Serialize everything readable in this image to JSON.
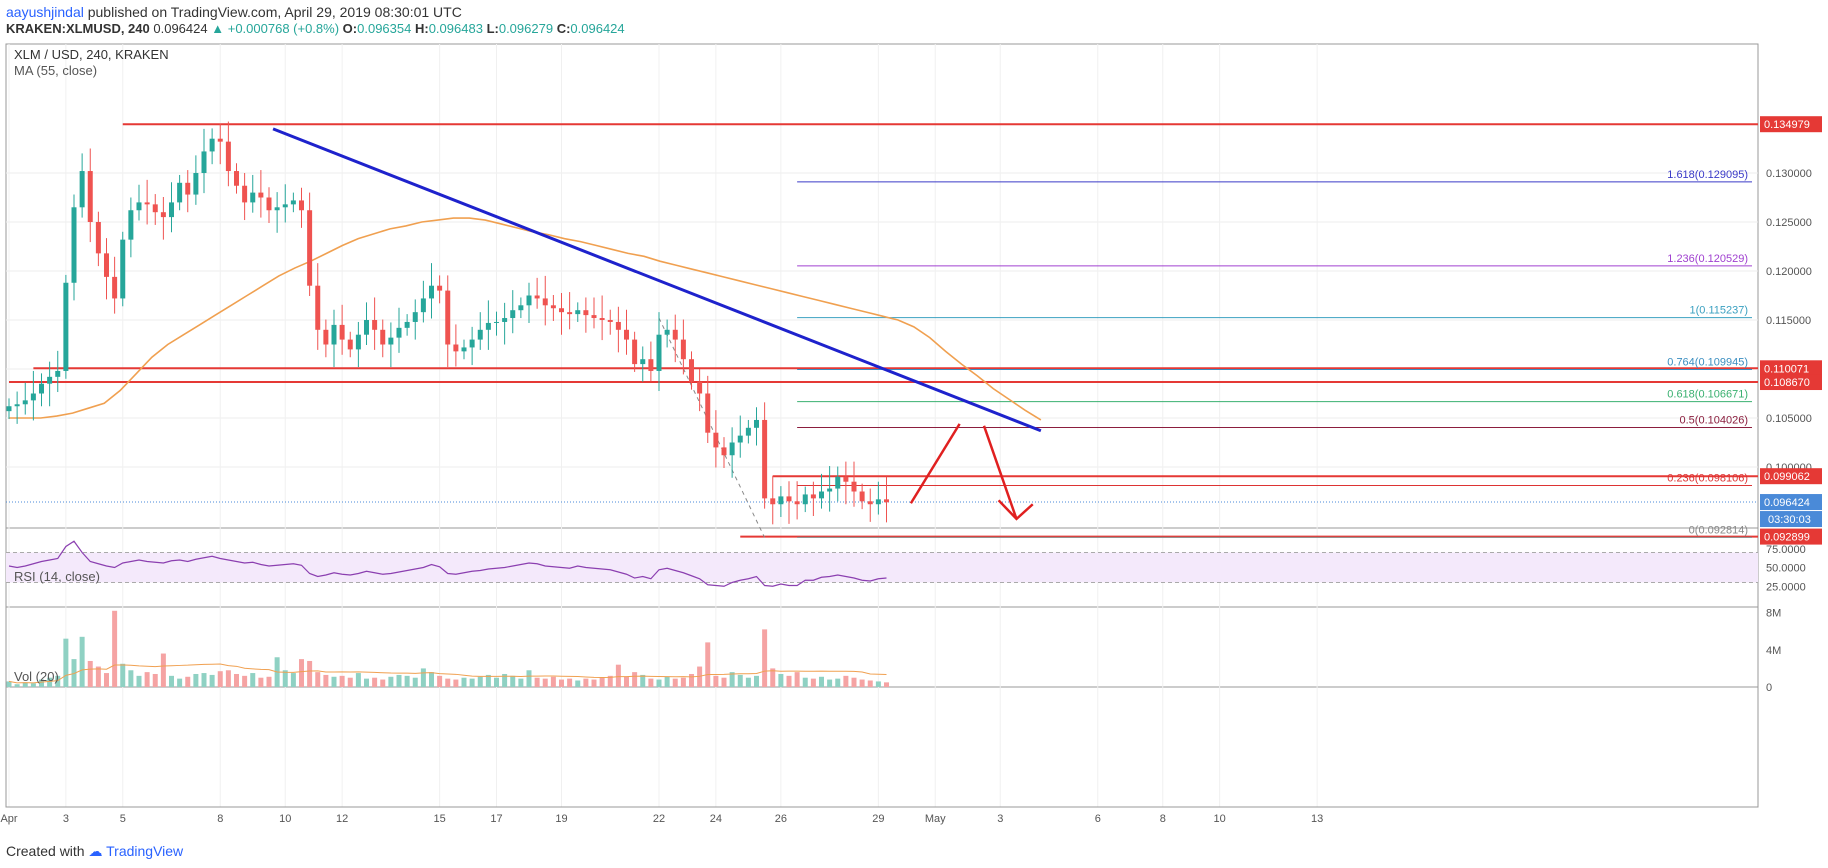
{
  "header": {
    "author": "aayushjindal",
    "published": "published on TradingView.com, April 29, 2019 08:30:01 UTC",
    "symbol": "KRAKEN:XLMUSD, 240",
    "last": "0.096424",
    "change": "+0.000768 (+0.8%)",
    "o_label": "O:",
    "o": "0.096354",
    "h_label": "H:",
    "h": "0.096483",
    "l_label": "L:",
    "l": "0.096279",
    "c_label": "C:",
    "c": "0.096424"
  },
  "footer": {
    "created_with": "Created with",
    "brand": "TradingView"
  },
  "colors": {
    "bull": "#26a69a",
    "bear": "#ef5350",
    "ma": "#f0a050",
    "trend": "#1e22cc",
    "support": "#e53935",
    "rsi": "#8b3fb0"
  },
  "chart_data": {
    "type": "line",
    "title": "XLM / USD, 240, KRAKEN",
    "indicator_label": "MA (55, close)",
    "price_ticks": [
      "0.130000",
      "0.125000",
      "0.120000",
      "0.115000",
      "0.110000",
      "0.105000",
      "0.100000"
    ],
    "price_ticks_values": [
      0.13,
      0.125,
      0.12,
      0.115,
      0.11,
      0.105,
      0.1
    ],
    "date_ticks": [
      {
        "label": "Apr",
        "i": 0
      },
      {
        "label": "3",
        "i": 7
      },
      {
        "label": "5",
        "i": 14
      },
      {
        "label": "8",
        "i": 26
      },
      {
        "label": "10",
        "i": 34
      },
      {
        "label": "12",
        "i": 41
      },
      {
        "label": "15",
        "i": 53
      },
      {
        "label": "17",
        "i": 60
      },
      {
        "label": "19",
        "i": 68
      },
      {
        "label": "22",
        "i": 80
      },
      {
        "label": "24",
        "i": 87
      },
      {
        "label": "26",
        "i": 95
      },
      {
        "label": "29",
        "i": 107
      },
      {
        "label": "May",
        "i": 114
      },
      {
        "label": "3",
        "i": 122
      },
      {
        "label": "6",
        "i": 134
      },
      {
        "label": "8",
        "i": 142
      },
      {
        "label": "10",
        "i": 149
      },
      {
        "label": "13",
        "i": 161
      }
    ],
    "close": [
      0.1062,
      0.1064,
      0.1068,
      0.1075,
      0.1085,
      0.1092,
      0.1098,
      0.1188,
      0.1265,
      0.1302,
      0.125,
      0.1218,
      0.1194,
      0.1172,
      0.1232,
      0.1262,
      0.127,
      0.1268,
      0.126,
      0.1255,
      0.127,
      0.129,
      0.1278,
      0.13,
      0.1322,
      0.1335,
      0.1332,
      0.1302,
      0.1287,
      0.127,
      0.128,
      0.1275,
      0.1262,
      0.1265,
      0.1268,
      0.1272,
      0.1262,
      0.1185,
      0.114,
      0.1125,
      0.1145,
      0.113,
      0.112,
      0.1135,
      0.115,
      0.114,
      0.1125,
      0.1132,
      0.1142,
      0.1148,
      0.1158,
      0.1172,
      0.1185,
      0.118,
      0.1125,
      0.1118,
      0.1122,
      0.113,
      0.114,
      0.1147,
      0.1148,
      0.1152,
      0.116,
      0.1165,
      0.1175,
      0.1172,
      0.1165,
      0.1162,
      0.1158,
      0.1156,
      0.116,
      0.1155,
      0.1152,
      0.115,
      0.1148,
      0.114,
      0.113,
      0.1105,
      0.111,
      0.1098,
      0.1135,
      0.114,
      0.113,
      0.111,
      0.1087,
      0.1075,
      0.1035,
      0.102,
      0.1012,
      0.1025,
      0.1032,
      0.104,
      0.1048,
      0.0968,
      0.0962,
      0.097,
      0.0965,
      0.0962,
      0.0972,
      0.0968,
      0.0975,
      0.0978,
      0.099,
      0.0985,
      0.0975,
      0.0965,
      0.0962,
      0.0967,
      0.0964
    ],
    "ma_55": [
      0.105,
      0.105,
      0.105,
      0.1052,
      0.1055,
      0.106,
      0.1065,
      0.1078,
      0.1095,
      0.1112,
      0.1125,
      0.1135,
      0.1145,
      0.1155,
      0.1165,
      0.1175,
      0.1185,
      0.1195,
      0.1203,
      0.121,
      0.1218,
      0.1226,
      0.1233,
      0.1238,
      0.1243,
      0.1246,
      0.125,
      0.1252,
      0.1254,
      0.1254,
      0.1252,
      0.1248,
      0.1244,
      0.124,
      0.1237,
      0.1233,
      0.123,
      0.1226,
      0.1222,
      0.1218,
      0.1215,
      0.121,
      0.1206,
      0.1202,
      0.1198,
      0.1194,
      0.119,
      0.1186,
      0.1182,
      0.1178,
      0.1174,
      0.117,
      0.1166,
      0.1162,
      0.1158,
      0.1154,
      0.115,
      0.1143,
      0.1132,
      0.1118,
      0.1105,
      0.1093,
      0.108,
      0.1069,
      0.1058,
      0.1048
    ],
    "ma_55_start": 50,
    "support_lines": [
      {
        "value": 0.134979,
        "label": "0.134979",
        "from": 14,
        "to": 172
      },
      {
        "value": 0.110071,
        "label": "0.110071",
        "from": 3,
        "to": 172
      },
      {
        "value": 0.10867,
        "label": "0.108670",
        "from": 0,
        "to": 172
      },
      {
        "value": 0.099062,
        "label": "0.099062",
        "from": 94,
        "to": 172
      },
      {
        "value": 0.092899,
        "label": "0.092899",
        "from": 90,
        "to": 172
      }
    ],
    "fib_levels": [
      {
        "ratio": "1.618",
        "label": "1.618(0.129095)",
        "value": 0.129095,
        "color": "#3a3ac8"
      },
      {
        "ratio": "1.236",
        "label": "1.236(0.120529)",
        "value": 0.120529,
        "color": "#a040d0"
      },
      {
        "ratio": "1",
        "label": "1(0.115237)",
        "value": 0.115237,
        "color": "#3aa0c0"
      },
      {
        "ratio": "0.764",
        "label": "0.764(0.109945)",
        "value": 0.109945,
        "color": "#3a8ec0"
      },
      {
        "ratio": "0.618",
        "label": "0.618(0.106671)",
        "value": 0.106671,
        "color": "#3ab070"
      },
      {
        "ratio": "0.5",
        "label": "0.5(0.104026)",
        "value": 0.104026,
        "color": "#8b1e3e"
      },
      {
        "ratio": "0.236",
        "label": "0.236(0.098106)",
        "value": 0.098106,
        "color": "#d33"
      },
      {
        "ratio": "0",
        "label": "0(0.092814)",
        "value": 0.092814,
        "color": "#888"
      }
    ],
    "trend_line": {
      "from": [
        32.5,
        0.1345
      ],
      "to": [
        127,
        0.1037
      ]
    },
    "current": {
      "price": "0.096424",
      "countdown": "03:30:03",
      "value": 0.096424
    },
    "rsi": {
      "label": "RSI (14, close)",
      "ticks": [
        "75.0000",
        "50.0000",
        "25.0000"
      ],
      "ticks_values": [
        75,
        50,
        25
      ],
      "values": [
        52,
        50,
        52,
        55,
        58,
        60,
        62,
        78,
        85,
        70,
        58,
        55,
        52,
        50,
        56,
        58,
        60,
        58,
        57,
        56,
        59,
        60,
        58,
        61,
        63,
        65,
        62,
        60,
        58,
        56,
        57,
        54,
        52,
        53,
        54,
        55,
        53,
        42,
        38,
        40,
        43,
        41,
        40,
        42,
        45,
        43,
        41,
        42,
        44,
        46,
        48,
        50,
        54,
        51,
        42,
        41,
        43,
        45,
        46,
        48,
        49,
        50,
        52,
        54,
        56,
        55,
        52,
        51,
        50,
        49,
        52,
        50,
        49,
        48,
        47,
        44,
        41,
        36,
        38,
        35,
        47,
        49,
        46,
        43,
        39,
        35,
        27,
        26,
        25,
        30,
        33,
        35,
        38,
        26,
        25,
        28,
        26,
        26,
        33,
        33,
        37,
        38,
        40,
        38,
        36,
        33,
        32,
        35,
        36
      ],
      "range": [
        0,
        100
      ]
    },
    "volume": {
      "label": "Vol (20)",
      "ticks": [
        "8M",
        "4M",
        "0"
      ],
      "ticks_values": [
        8,
        4,
        0
      ],
      "values": [
        0.6,
        0.3,
        0.5,
        0.4,
        0.8,
        1.0,
        1.2,
        5.2,
        3.0,
        5.4,
        2.8,
        2.2,
        1.5,
        8.2,
        2.5,
        1.8,
        1.2,
        1.6,
        1.4,
        3.6,
        1.2,
        0.9,
        1.1,
        1.4,
        1.5,
        1.3,
        1.7,
        1.8,
        1.4,
        1.2,
        1.5,
        1.0,
        1.1,
        3.2,
        1.8,
        1.5,
        3.0,
        2.8,
        1.6,
        1.3,
        1.1,
        1.2,
        1.0,
        1.5,
        0.9,
        1.0,
        0.8,
        1.1,
        1.3,
        1.2,
        1.0,
        2.0,
        1.6,
        1.2,
        0.9,
        0.8,
        1.0,
        0.9,
        1.1,
        1.3,
        1.0,
        1.4,
        1.2,
        0.9,
        1.8,
        1.0,
        0.9,
        1.1,
        0.8,
        0.9,
        0.7,
        0.9,
        0.8,
        1.0,
        1.2,
        2.4,
        1.1,
        1.6,
        1.3,
        0.9,
        0.8,
        1.1,
        0.9,
        1.0,
        1.4,
        2.2,
        4.8,
        1.2,
        1.0,
        1.6,
        1.3,
        1.0,
        1.2,
        6.2,
        2.0,
        1.4,
        1.2,
        1.6,
        1.0,
        0.9,
        1.1,
        0.8,
        0.9,
        1.2,
        1.0,
        0.8,
        0.7,
        0.6,
        0.5
      ],
      "unit": "M"
    }
  }
}
